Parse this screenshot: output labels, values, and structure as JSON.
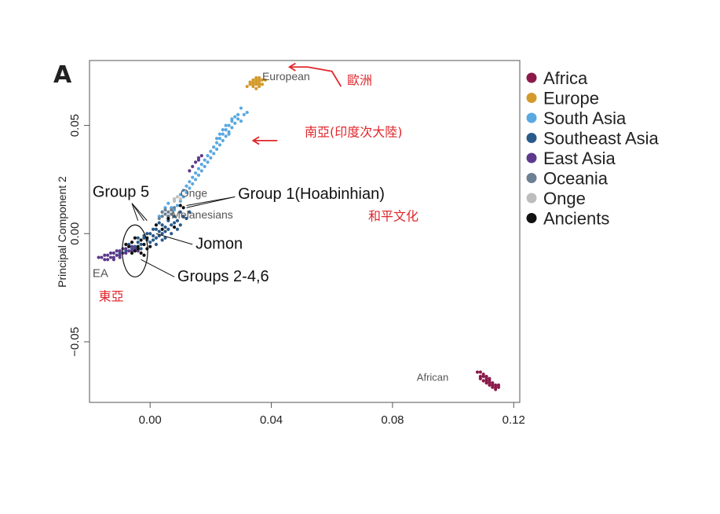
{
  "panel_label": "A",
  "colors": {
    "Africa": "#8b1a4a",
    "Europe": "#d39a2c",
    "South Asia": "#5aa8e0",
    "Southeast Asia": "#2a5a8a",
    "East Asia": "#5d3a8c",
    "Oceania": "#6d7f92",
    "Onge": "#bdbdbd",
    "Ancients": "#111111",
    "annotation_red": "#e0262b"
  },
  "chart_data": {
    "type": "scatter",
    "title": "",
    "xlabel": "",
    "ylabel": "Principal Component 2",
    "xlim": [
      -0.02,
      0.122
    ],
    "ylim": [
      -0.078,
      0.08
    ],
    "xticks": [
      0.0,
      0.04,
      0.08,
      0.12
    ],
    "xtick_labels": [
      "0.00",
      "0.04",
      "0.08",
      "0.12"
    ],
    "yticks": [
      0.05,
      0.0,
      -0.05
    ],
    "ytick_labels": [
      "0.05",
      "0.00",
      "−0.05"
    ],
    "grid": false,
    "legend_position": "right",
    "legend": [
      "Africa",
      "Europe",
      "South Asia",
      "Southeast Asia",
      "East Asia",
      "Oceania",
      "Onge",
      "Ancients"
    ],
    "series": [
      {
        "name": "Africa",
        "points": [
          [
            0.108,
            -0.064
          ],
          [
            0.109,
            -0.066
          ],
          [
            0.11,
            -0.065
          ],
          [
            0.11,
            -0.068
          ],
          [
            0.111,
            -0.067
          ],
          [
            0.111,
            -0.069
          ],
          [
            0.112,
            -0.068
          ],
          [
            0.112,
            -0.07
          ],
          [
            0.113,
            -0.069
          ],
          [
            0.113,
            -0.071
          ],
          [
            0.114,
            -0.07
          ],
          [
            0.114,
            -0.071
          ],
          [
            0.115,
            -0.071
          ],
          [
            0.109,
            -0.067
          ],
          [
            0.111,
            -0.066
          ],
          [
            0.112,
            -0.067
          ],
          [
            0.113,
            -0.07
          ],
          [
            0.11,
            -0.066
          ],
          [
            0.109,
            -0.064
          ],
          [
            0.111,
            -0.068
          ],
          [
            0.112,
            -0.069
          ],
          [
            0.114,
            -0.072
          ],
          [
            0.115,
            -0.07
          ]
        ]
      },
      {
        "name": "Europe",
        "points": [
          [
            0.033,
            0.069
          ],
          [
            0.034,
            0.07
          ],
          [
            0.034,
            0.068
          ],
          [
            0.035,
            0.071
          ],
          [
            0.035,
            0.069
          ],
          [
            0.036,
            0.07
          ],
          [
            0.036,
            0.072
          ],
          [
            0.037,
            0.071
          ],
          [
            0.034,
            0.071
          ],
          [
            0.035,
            0.067
          ],
          [
            0.036,
            0.068
          ],
          [
            0.033,
            0.07
          ],
          [
            0.037,
            0.069
          ],
          [
            0.035,
            0.072
          ],
          [
            0.034,
            0.069
          ],
          [
            0.036,
            0.071
          ],
          [
            0.038,
            0.071
          ],
          [
            0.032,
            0.068
          ],
          [
            0.035,
            0.07
          ],
          [
            0.036,
            0.069
          ]
        ]
      },
      {
        "name": "South Asia",
        "points": [
          [
            0.03,
            0.058
          ],
          [
            0.029,
            0.055
          ],
          [
            0.028,
            0.054
          ],
          [
            0.027,
            0.052
          ],
          [
            0.026,
            0.05
          ],
          [
            0.025,
            0.048
          ],
          [
            0.024,
            0.046
          ],
          [
            0.023,
            0.044
          ],
          [
            0.022,
            0.042
          ],
          [
            0.021,
            0.04
          ],
          [
            0.028,
            0.051
          ],
          [
            0.027,
            0.049
          ],
          [
            0.026,
            0.047
          ],
          [
            0.025,
            0.045
          ],
          [
            0.024,
            0.043
          ],
          [
            0.023,
            0.041
          ],
          [
            0.022,
            0.039
          ],
          [
            0.021,
            0.037
          ],
          [
            0.02,
            0.035
          ],
          [
            0.019,
            0.033
          ],
          [
            0.018,
            0.031
          ],
          [
            0.017,
            0.029
          ],
          [
            0.016,
            0.027
          ],
          [
            0.015,
            0.025
          ],
          [
            0.014,
            0.023
          ],
          [
            0.013,
            0.021
          ],
          [
            0.012,
            0.019
          ],
          [
            0.011,
            0.017
          ],
          [
            0.01,
            0.015
          ],
          [
            0.009,
            0.013
          ],
          [
            0.008,
            0.011
          ],
          [
            0.029,
            0.053
          ],
          [
            0.027,
            0.053
          ],
          [
            0.03,
            0.052
          ],
          [
            0.031,
            0.055
          ],
          [
            0.026,
            0.046
          ],
          [
            0.024,
            0.048
          ],
          [
            0.022,
            0.044
          ],
          [
            0.02,
            0.038
          ],
          [
            0.018,
            0.034
          ],
          [
            0.016,
            0.03
          ],
          [
            0.014,
            0.026
          ],
          [
            0.012,
            0.022
          ],
          [
            0.01,
            0.018
          ],
          [
            0.008,
            0.016
          ],
          [
            0.006,
            0.014
          ],
          [
            0.005,
            0.012
          ],
          [
            0.032,
            0.056
          ],
          [
            0.025,
            0.05
          ],
          [
            0.023,
            0.046
          ],
          [
            0.019,
            0.036
          ],
          [
            0.017,
            0.032
          ],
          [
            0.015,
            0.028
          ],
          [
            0.013,
            0.024
          ],
          [
            0.011,
            0.02
          ],
          [
            0.007,
            0.012
          ],
          [
            0.004,
            0.01
          ],
          [
            0.003,
            0.008
          ]
        ]
      },
      {
        "name": "Southeast Asia",
        "points": [
          [
            0.01,
            0.01
          ],
          [
            0.008,
            0.008
          ],
          [
            0.006,
            0.006
          ],
          [
            0.004,
            0.004
          ],
          [
            0.002,
            0.002
          ],
          [
            0.0,
            0.0
          ],
          [
            -0.002,
            -0.002
          ],
          [
            -0.004,
            -0.004
          ],
          [
            0.007,
            0.004
          ],
          [
            0.005,
            0.003
          ],
          [
            0.003,
            0.001
          ],
          [
            0.001,
            -0.001
          ],
          [
            -0.001,
            -0.003
          ],
          [
            -0.003,
            -0.005
          ],
          [
            0.009,
            0.006
          ],
          [
            0.006,
            0.002
          ],
          [
            0.004,
            0.0
          ],
          [
            0.002,
            -0.002
          ],
          [
            0.0,
            -0.004
          ],
          [
            0.011,
            0.008
          ],
          [
            0.008,
            0.005
          ],
          [
            0.005,
            0.001
          ],
          [
            0.003,
            -0.001
          ],
          [
            0.001,
            -0.003
          ],
          [
            -0.005,
            -0.006
          ],
          [
            -0.006,
            -0.007
          ],
          [
            -0.008,
            -0.008
          ],
          [
            -0.01,
            -0.009
          ],
          [
            0.012,
            0.007
          ],
          [
            0.01,
            0.004
          ],
          [
            0.007,
            0.0
          ],
          [
            0.004,
            -0.003
          ],
          [
            0.002,
            -0.005
          ],
          [
            -0.002,
            -0.001
          ],
          [
            -0.004,
            -0.002
          ],
          [
            0.006,
            0.008
          ],
          [
            0.003,
            0.005
          ],
          [
            0.001,
            0.002
          ],
          [
            -0.001,
            0.0
          ],
          [
            0.013,
            0.01
          ],
          [
            0.009,
            0.002
          ],
          [
            -0.003,
            -0.007
          ],
          [
            -0.007,
            -0.005
          ],
          [
            0.005,
            -0.002
          ]
        ]
      },
      {
        "name": "East Asia",
        "points": [
          [
            -0.016,
            -0.011
          ],
          [
            -0.015,
            -0.012
          ],
          [
            -0.014,
            -0.01
          ],
          [
            -0.013,
            -0.011
          ],
          [
            -0.012,
            -0.009
          ],
          [
            -0.011,
            -0.01
          ],
          [
            -0.01,
            -0.008
          ],
          [
            -0.009,
            -0.009
          ],
          [
            -0.008,
            -0.007
          ],
          [
            -0.007,
            -0.008
          ],
          [
            -0.006,
            -0.006
          ],
          [
            -0.014,
            -0.012
          ],
          [
            -0.012,
            -0.011
          ],
          [
            -0.01,
            -0.01
          ],
          [
            -0.008,
            -0.009
          ],
          [
            -0.006,
            -0.008
          ],
          [
            -0.013,
            -0.009
          ],
          [
            -0.011,
            -0.008
          ],
          [
            -0.009,
            -0.007
          ],
          [
            -0.007,
            -0.006
          ],
          [
            -0.015,
            -0.01
          ],
          [
            -0.017,
            -0.011
          ],
          [
            -0.005,
            -0.007
          ],
          [
            -0.004,
            -0.008
          ],
          [
            0.016,
            0.035
          ],
          [
            0.015,
            0.033
          ],
          [
            0.014,
            0.031
          ],
          [
            0.017,
            0.036
          ],
          [
            0.013,
            0.029
          ],
          [
            0.016,
            0.034
          ],
          [
            -0.012,
            -0.012
          ],
          [
            -0.01,
            -0.011
          ]
        ]
      },
      {
        "name": "Oceania",
        "points": [
          [
            0.005,
            0.009
          ],
          [
            0.006,
            0.01
          ],
          [
            0.007,
            0.011
          ],
          [
            0.004,
            0.008
          ],
          [
            0.006,
            0.008
          ],
          [
            0.005,
            0.011
          ],
          [
            0.007,
            0.009
          ],
          [
            0.004,
            0.01
          ],
          [
            0.008,
            0.012
          ],
          [
            0.003,
            0.007
          ]
        ]
      },
      {
        "name": "Onge",
        "points": [
          [
            0.008,
            0.016
          ],
          [
            0.009,
            0.017
          ],
          [
            0.01,
            0.016
          ],
          [
            0.008,
            0.015
          ]
        ]
      },
      {
        "name": "Ancients",
        "points": [
          [
            -0.006,
            -0.004
          ],
          [
            -0.004,
            -0.006
          ],
          [
            -0.002,
            -0.005
          ],
          [
            -0.005,
            -0.008
          ],
          [
            -0.003,
            -0.009
          ],
          [
            -0.001,
            -0.007
          ],
          [
            -0.007,
            -0.006
          ],
          [
            -0.003,
            -0.003
          ],
          [
            -0.006,
            -0.009
          ],
          [
            -0.002,
            -0.01
          ],
          [
            -0.004,
            -0.007
          ],
          [
            0.0,
            -0.006
          ],
          [
            -0.008,
            -0.005
          ],
          [
            -0.005,
            -0.002
          ],
          [
            0.01,
            0.013
          ],
          [
            0.008,
            0.003
          ],
          [
            0.004,
            0.002
          ],
          [
            0.002,
            0.004
          ],
          [
            0.006,
            0.007
          ],
          [
            -0.001,
            -0.002
          ],
          [
            0.011,
            0.012
          ]
        ]
      }
    ],
    "annotations": [
      {
        "text": "European",
        "x": 0.037,
        "y": 0.071,
        "style": "grey",
        "size": 14
      },
      {
        "text": "African",
        "x": 0.088,
        "y": -0.068,
        "style": "grey",
        "size": 13
      },
      {
        "text": "EA",
        "x": -0.019,
        "y": -0.02,
        "style": "grey",
        "size": 15
      },
      {
        "text": "Onge",
        "x": 0.01,
        "y": 0.017,
        "style": "grey",
        "size": 14
      },
      {
        "text": "Melanesians",
        "x": 0.007,
        "y": 0.007,
        "style": "grey",
        "size": 14
      },
      {
        "text": "Group 5",
        "x": -0.019,
        "y": 0.017,
        "style": "black",
        "size": 20
      },
      {
        "text": "Group 1(Hoabinhian)",
        "x": 0.029,
        "y": 0.016,
        "style": "black",
        "size": 20
      },
      {
        "text": "Jomon",
        "x": 0.015,
        "y": -0.007,
        "style": "black",
        "size": 20
      },
      {
        "text": "Groups 2-4,6",
        "x": 0.009,
        "y": -0.022,
        "style": "black",
        "size": 20
      }
    ],
    "red_notes": [
      {
        "text": "歐洲",
        "x": 0.065,
        "y": 0.069
      },
      {
        "text": "南亞(印度次大陸)",
        "x": 0.051,
        "y": 0.045
      },
      {
        "text": "和平文化",
        "x": 0.072,
        "y": 0.006
      },
      {
        "text": "東亞",
        "x": -0.017,
        "y": -0.031
      }
    ],
    "ellipse": {
      "cx": -0.005,
      "cy": -0.008,
      "rx": 0.0042,
      "ry": 0.012
    },
    "leader_lines": [
      {
        "from": [
          -0.006,
          0.014
        ],
        "to": [
          -0.004,
          0.006
        ]
      },
      {
        "from": [
          -0.006,
          0.014
        ],
        "to": [
          -0.002,
          0.006
        ]
      },
      {
        "from": [
          -0.006,
          0.014
        ],
        "to": [
          -0.001,
          0.006
        ]
      },
      {
        "from": [
          0.028,
          0.017
        ],
        "to": [
          0.012,
          0.012
        ]
      },
      {
        "from": [
          0.028,
          0.017
        ],
        "to": [
          0.012,
          0.013
        ]
      },
      {
        "from": [
          0.014,
          -0.005
        ],
        "to": [
          0.002,
          0.0
        ]
      },
      {
        "from": [
          0.008,
          -0.02
        ],
        "to": [
          -0.003,
          -0.012
        ]
      }
    ],
    "red_arrows": [
      {
        "path": [
          [
            0.063,
            0.068
          ],
          [
            0.06,
            0.075
          ],
          [
            0.052,
            0.077
          ],
          [
            0.046,
            0.077
          ]
        ],
        "head": "end"
      },
      {
        "path": [
          [
            0.042,
            0.043
          ],
          [
            0.034,
            0.043
          ]
        ],
        "head": "end"
      }
    ]
  }
}
